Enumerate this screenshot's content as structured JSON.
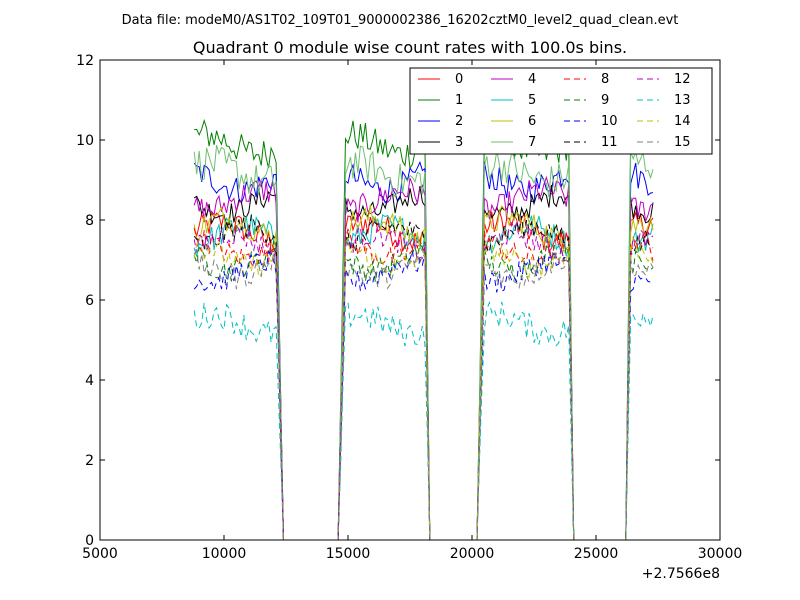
{
  "page": {
    "supertitle": "Data file: modeM0/AS1T02_109T01_9000002386_16202cztM0_level2_quad_clean.evt"
  },
  "chart_data": {
    "type": "line",
    "title": "Quadrant 0 module wise count rates with 100.0s bins.",
    "xlabel": "",
    "ylabel": "",
    "x_offset_label": "+2.7566e8",
    "xlim": [
      5000,
      30000
    ],
    "ylim": [
      0,
      12
    ],
    "xticks": [
      "5000",
      "10000",
      "15000",
      "20000",
      "25000",
      "30000"
    ],
    "yticks": [
      "0",
      "2",
      "4",
      "6",
      "8",
      "10",
      "12"
    ],
    "grid": false,
    "legend_position": "top-right",
    "legend_columns": 4,
    "segments": [
      {
        "x_start": 8800,
        "x_end": 12400,
        "ramp_in": 0,
        "ramp_out": 300
      },
      {
        "x_start": 14600,
        "x_end": 18300,
        "ramp_in": 300,
        "ramp_out": 200
      },
      {
        "x_start": 20200,
        "x_end": 24100,
        "ramp_in": 300,
        "ramp_out": 200
      },
      {
        "x_start": 26200,
        "x_end": 27300,
        "ramp_in": 200,
        "ramp_out": 0
      }
    ],
    "zero_gaps": [
      {
        "x_start": 12500,
        "x_end": 14400
      },
      {
        "x_start": 18400,
        "x_end": 20100
      },
      {
        "x_start": 24300,
        "x_end": 26100
      }
    ],
    "bin_width": 100,
    "series": [
      {
        "name": "0",
        "color": "#ff0000",
        "dash": "solid",
        "mean": 7.7,
        "noise": 0.35
      },
      {
        "name": "1",
        "color": "#008000",
        "dash": "solid",
        "mean": 9.9,
        "noise": 0.4
      },
      {
        "name": "2",
        "color": "#0000ff",
        "dash": "solid",
        "mean": 9.0,
        "noise": 0.35
      },
      {
        "name": "3",
        "color": "#000000",
        "dash": "solid",
        "mean": 8.4,
        "noise": 0.3
      },
      {
        "name": "4",
        "color": "#bf00bf",
        "dash": "solid",
        "mean": 8.5,
        "noise": 0.35
      },
      {
        "name": "5",
        "color": "#00bfbf",
        "dash": "solid",
        "mean": 7.6,
        "noise": 0.35
      },
      {
        "name": "6",
        "color": "#bfbf00",
        "dash": "solid",
        "mean": 7.8,
        "noise": 0.35
      },
      {
        "name": "7",
        "color": "#6fbf6f",
        "dash": "solid",
        "mean": 9.2,
        "noise": 0.45
      },
      {
        "name": "8",
        "color": "#ff0000",
        "dash": "dashed",
        "mean": 7.3,
        "noise": 0.3
      },
      {
        "name": "9",
        "color": "#008000",
        "dash": "dashed",
        "mean": 7.0,
        "noise": 0.3
      },
      {
        "name": "10",
        "color": "#0000ff",
        "dash": "dashed",
        "mean": 6.7,
        "noise": 0.3
      },
      {
        "name": "11",
        "color": "#000000",
        "dash": "dashed",
        "mean": 7.6,
        "noise": 0.3
      },
      {
        "name": "12",
        "color": "#bf00bf",
        "dash": "dashed",
        "mean": 7.4,
        "noise": 0.3
      },
      {
        "name": "13",
        "color": "#00bfbf",
        "dash": "dashed",
        "mean": 5.4,
        "noise": 0.35
      },
      {
        "name": "14",
        "color": "#bfbf00",
        "dash": "dashed",
        "mean": 7.1,
        "noise": 0.3
      },
      {
        "name": "15",
        "color": "#7f7f7f",
        "dash": "dashed",
        "mean": 6.8,
        "noise": 0.3
      }
    ]
  }
}
